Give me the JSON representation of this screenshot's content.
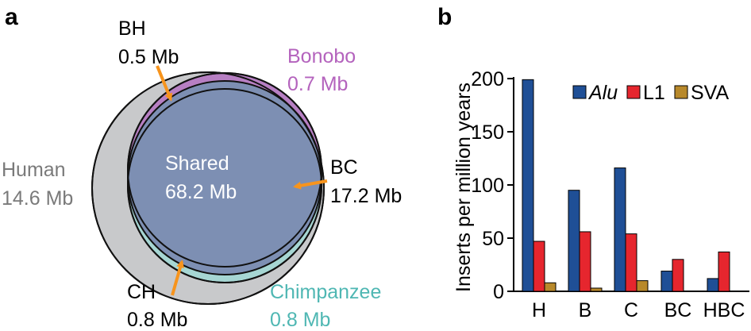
{
  "panel_a": {
    "letter": "a",
    "regions": {
      "bh": {
        "name": "BH",
        "size": "0.5 Mb"
      },
      "bonobo": {
        "name": "Bonobo",
        "size": "0.7 Mb"
      },
      "human": {
        "name": "Human",
        "size": "14.6 Mb"
      },
      "shared": {
        "name": "Shared",
        "size": "68.2 Mb"
      },
      "bc": {
        "name": "BC",
        "size": "17.2 Mb"
      },
      "ch": {
        "name": "CH",
        "size": "0.8 Mb"
      },
      "chimpanzee": {
        "name": "Chimpanzee",
        "size": "0.8 Mb"
      }
    },
    "colors": {
      "human": "#c8c9cb",
      "bonobo": "#b77fc3",
      "chimpanzee": "#a6d6d3",
      "shared": "#7d8fb3",
      "arrow": "#f7941d",
      "human_text": "#7a7a7a",
      "bonobo_text": "#b463bd",
      "chimp_text": "#4fb7b3",
      "shared_text": "#ffffff"
    }
  },
  "panel_b": {
    "letter": "b"
  },
  "chart_data": {
    "type": "bar",
    "categories": [
      "H",
      "B",
      "C",
      "BC",
      "HBC"
    ],
    "series": [
      {
        "name": "Alu",
        "values": [
          199,
          95,
          116,
          19,
          12
        ],
        "color": "#1f4f96"
      },
      {
        "name": "L1",
        "values": [
          47,
          56,
          54,
          30,
          37
        ],
        "color": "#e6262e"
      },
      {
        "name": "SVA",
        "values": [
          8,
          3,
          10,
          0,
          0
        ],
        "color": "#b8892b"
      }
    ],
    "ylabel": "Inserts per million years",
    "ylim": [
      0,
      200
    ],
    "yticks": [
      0,
      50,
      100,
      150,
      200
    ],
    "legend": "top-right",
    "grid": false
  }
}
